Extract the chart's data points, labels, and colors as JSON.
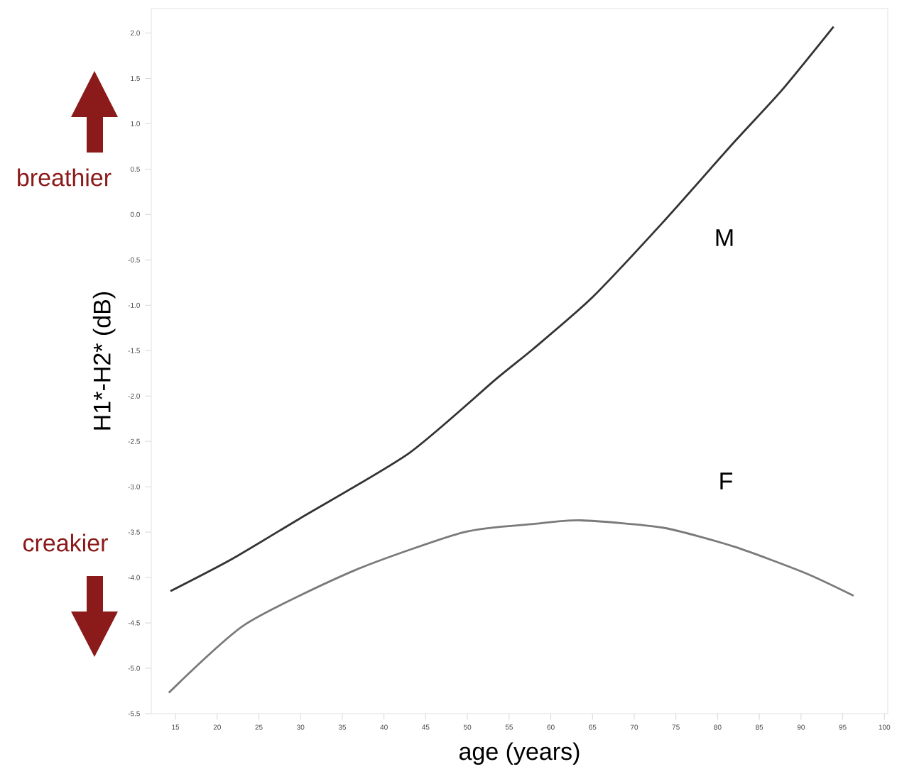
{
  "chart_data": {
    "type": "line",
    "xlabel": "age (years)",
    "ylabel": "H1*-H2* (dB)",
    "xlim": [
      12.1,
      100.4
    ],
    "ylim": [
      -5.5,
      2.27
    ],
    "xticks": [
      15,
      20,
      25,
      30,
      35,
      40,
      45,
      50,
      55,
      60,
      65,
      70,
      75,
      80,
      85,
      90,
      95,
      100
    ],
    "yticks": [
      -5.5,
      {
        "value": -5,
        "label": "-5.0"
      },
      -4.5,
      {
        "value": -4,
        "label": "-4.0"
      },
      -3.5,
      {
        "value": -3,
        "label": "-3.0"
      },
      -2.5,
      {
        "value": -2,
        "label": "-2.0"
      },
      -1.5,
      {
        "value": -1,
        "label": "-1.0"
      },
      -0.5,
      {
        "value": 0,
        "label": "0.0"
      },
      0.5,
      {
        "value": 1,
        "label": "1.0"
      },
      1.5,
      {
        "value": 2,
        "label": "2.0"
      }
    ],
    "series": [
      {
        "color": "#333333",
        "x": [
          14.4,
          21.7,
          29.9,
          43.0,
          53.6,
          57.9,
          64.9,
          73.4,
          82.0,
          87.7,
          93.9
        ],
        "values": [
          -4.15,
          -3.8,
          -3.35,
          -2.63,
          -1.8,
          -1.48,
          -0.92,
          -0.09,
          0.8,
          1.37,
          2.07
        ]
      },
      {
        "color": "#7a7a7a",
        "x": [
          14.2,
          23.3,
          36.5,
          49.6,
          57.9,
          63.6,
          73.4,
          82.0,
          90.5,
          96.3
        ],
        "values": [
          -5.27,
          -4.52,
          -3.92,
          -3.5,
          -3.41,
          -3.37,
          -3.45,
          -3.66,
          -3.95,
          -4.2
        ]
      }
    ],
    "annotations": [
      "breathier",
      "creakier",
      "M",
      "F"
    ]
  }
}
